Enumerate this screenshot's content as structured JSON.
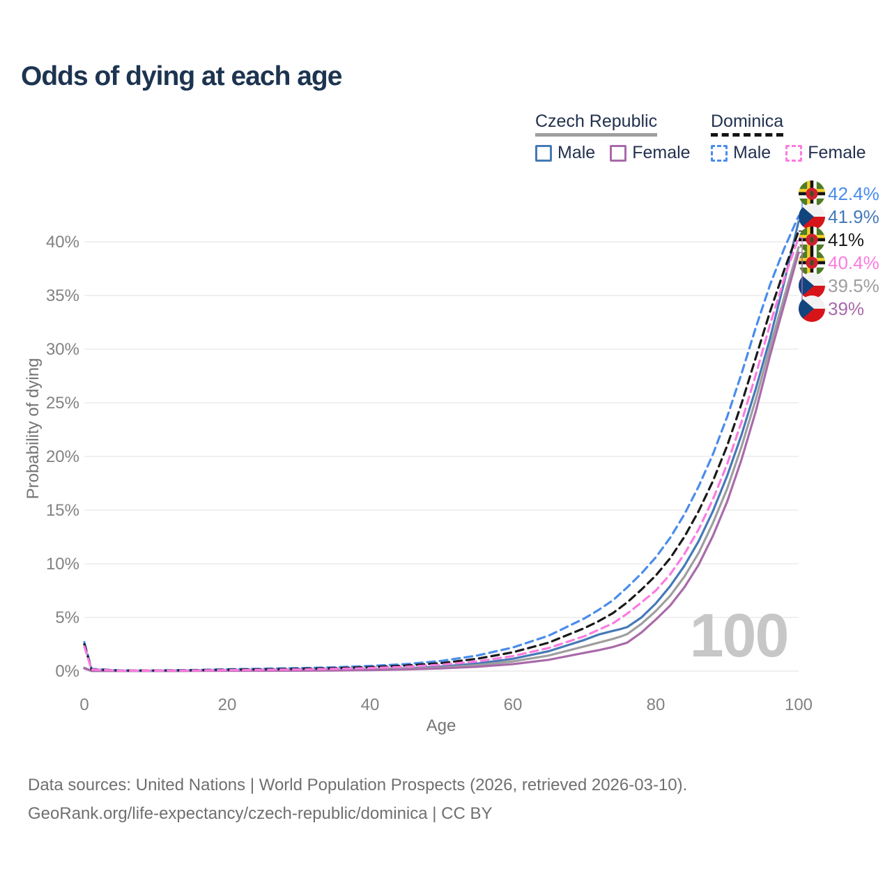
{
  "title": "Odds of dying at each age",
  "watermark": "100",
  "footer": {
    "line1": "Data sources: United Nations | World Population Prospects (2026, retrieved 2026-03-10).",
    "line2": "GeoRank.org/life-expectancy/czech-republic/dominica | CC BY"
  },
  "legend": {
    "czech": {
      "header": "Czech Republic",
      "male": "Male",
      "female": "Female"
    },
    "dominica": {
      "header": "Dominica",
      "male": "Male",
      "female": "Female"
    }
  },
  "colors": {
    "title": "#1d3450",
    "grid": "#ececec",
    "tick_text": "#828282",
    "watermark": "#c7c7c7",
    "czech_underline": "#9e9e9e",
    "dominica_underline": "#141414"
  },
  "chart_data": {
    "type": "line",
    "title": "Odds of dying at each age",
    "xlabel": "Age",
    "ylabel": "Probability of dying",
    "xlim": [
      0,
      100
    ],
    "ylim": [
      0,
      45
    ],
    "xticks": [
      0,
      20,
      40,
      60,
      80,
      100
    ],
    "yticks": [
      0,
      5,
      10,
      15,
      20,
      25,
      30,
      35,
      40
    ],
    "ytick_labels": [
      "0%",
      "5%",
      "10%",
      "15%",
      "20%",
      "25%",
      "30%",
      "35%",
      "40%"
    ],
    "grid": "horizontal",
    "legend_position": "top-right",
    "series": [
      {
        "name": "Dominica Male",
        "color": "#4a8cec",
        "dash": true,
        "flag": "dominica",
        "end_label": "42.4%",
        "x": [
          0,
          1,
          5,
          10,
          15,
          20,
          25,
          30,
          35,
          40,
          45,
          50,
          55,
          60,
          65,
          70,
          72,
          74,
          75,
          76,
          78,
          80,
          82,
          84,
          86,
          88,
          90,
          92,
          94,
          96,
          98,
          100
        ],
        "y": [
          2.7,
          0.2,
          0.06,
          0.06,
          0.1,
          0.17,
          0.22,
          0.28,
          0.35,
          0.48,
          0.65,
          0.95,
          1.45,
          2.2,
          3.3,
          4.9,
          5.7,
          6.6,
          7.2,
          7.8,
          9.1,
          10.6,
          12.4,
          14.6,
          17.2,
          20.2,
          23.7,
          27.7,
          32.0,
          36.0,
          39.4,
          42.4
        ]
      },
      {
        "name": "Czech Republic Male",
        "color": "#4579b6",
        "dash": false,
        "flag": "czech",
        "end_label": "41.9%",
        "x": [
          0,
          1,
          5,
          10,
          15,
          20,
          25,
          30,
          35,
          40,
          45,
          50,
          55,
          60,
          65,
          70,
          72,
          74,
          75,
          76,
          78,
          80,
          82,
          84,
          86,
          88,
          90,
          92,
          94,
          96,
          98,
          100
        ],
        "y": [
          0.3,
          0.03,
          0.02,
          0.02,
          0.04,
          0.07,
          0.08,
          0.09,
          0.11,
          0.15,
          0.25,
          0.42,
          0.7,
          1.15,
          1.85,
          2.9,
          3.4,
          3.75,
          3.9,
          4.1,
          5.0,
          6.3,
          7.9,
          9.8,
          12.1,
          14.9,
          18.2,
          22.0,
          26.3,
          31.0,
          36.3,
          41.9
        ]
      },
      {
        "name": "Dominica",
        "color": "#1a1a1a",
        "dash": true,
        "flag": "dominica",
        "end_label": "41%",
        "x": [
          0,
          1,
          5,
          10,
          15,
          20,
          25,
          30,
          35,
          40,
          45,
          50,
          55,
          60,
          65,
          70,
          72,
          74,
          75,
          76,
          78,
          80,
          82,
          84,
          86,
          88,
          90,
          92,
          94,
          96,
          98,
          100
        ],
        "y": [
          2.5,
          0.17,
          0.05,
          0.05,
          0.08,
          0.13,
          0.17,
          0.21,
          0.27,
          0.37,
          0.52,
          0.75,
          1.15,
          1.75,
          2.65,
          4.0,
          4.65,
          5.4,
          5.9,
          6.4,
          7.6,
          8.9,
          10.5,
          12.5,
          14.9,
          17.7,
          21.0,
          24.9,
          29.2,
          33.5,
          37.4,
          41.0
        ]
      },
      {
        "name": "Dominica Female",
        "color": "#fb7be0",
        "dash": true,
        "flag": "dominica",
        "end_label": "40.4%",
        "x": [
          0,
          1,
          5,
          10,
          15,
          20,
          25,
          30,
          35,
          40,
          45,
          50,
          55,
          60,
          65,
          70,
          72,
          74,
          75,
          76,
          78,
          80,
          82,
          84,
          86,
          88,
          90,
          92,
          94,
          96,
          98,
          100
        ],
        "y": [
          2.3,
          0.15,
          0.04,
          0.04,
          0.06,
          0.09,
          0.12,
          0.15,
          0.2,
          0.28,
          0.4,
          0.6,
          0.9,
          1.4,
          2.15,
          3.25,
          3.85,
          4.45,
          4.9,
          5.35,
          6.4,
          7.5,
          9.0,
          10.9,
          13.2,
          16.0,
          19.3,
          23.2,
          27.6,
          32.3,
          36.6,
          40.4
        ]
      },
      {
        "name": "Czech Republic",
        "color": "#9e9e9e",
        "dash": false,
        "flag": "czech",
        "end_label": "39.5%",
        "x": [
          0,
          1,
          5,
          10,
          15,
          20,
          25,
          30,
          35,
          40,
          45,
          50,
          55,
          60,
          65,
          70,
          72,
          74,
          75,
          76,
          78,
          80,
          82,
          84,
          86,
          88,
          90,
          92,
          94,
          96,
          98,
          100
        ],
        "y": [
          0.28,
          0.025,
          0.015,
          0.015,
          0.03,
          0.05,
          0.055,
          0.065,
          0.085,
          0.12,
          0.2,
          0.33,
          0.55,
          0.9,
          1.45,
          2.3,
          2.65,
          3.0,
          3.2,
          3.45,
          4.4,
          5.6,
          7.0,
          8.8,
          11.0,
          13.8,
          17.0,
          20.9,
          25.3,
          30.2,
          34.9,
          39.5
        ]
      },
      {
        "name": "Czech Republic Female",
        "color": "#a96aa9",
        "dash": false,
        "flag": "czech",
        "end_label": "39%",
        "x": [
          0,
          1,
          5,
          10,
          15,
          20,
          25,
          30,
          35,
          40,
          45,
          50,
          55,
          60,
          65,
          70,
          72,
          74,
          75,
          76,
          78,
          80,
          82,
          84,
          86,
          88,
          90,
          92,
          94,
          96,
          98,
          100
        ],
        "y": [
          0.25,
          0.02,
          0.01,
          0.01,
          0.02,
          0.03,
          0.03,
          0.04,
          0.06,
          0.09,
          0.15,
          0.25,
          0.4,
          0.65,
          1.05,
          1.7,
          1.95,
          2.25,
          2.45,
          2.65,
          3.6,
          4.8,
          6.1,
          7.8,
          9.9,
          12.6,
          15.8,
          19.7,
          24.2,
          29.4,
          34.2,
          39.0
        ]
      }
    ]
  }
}
